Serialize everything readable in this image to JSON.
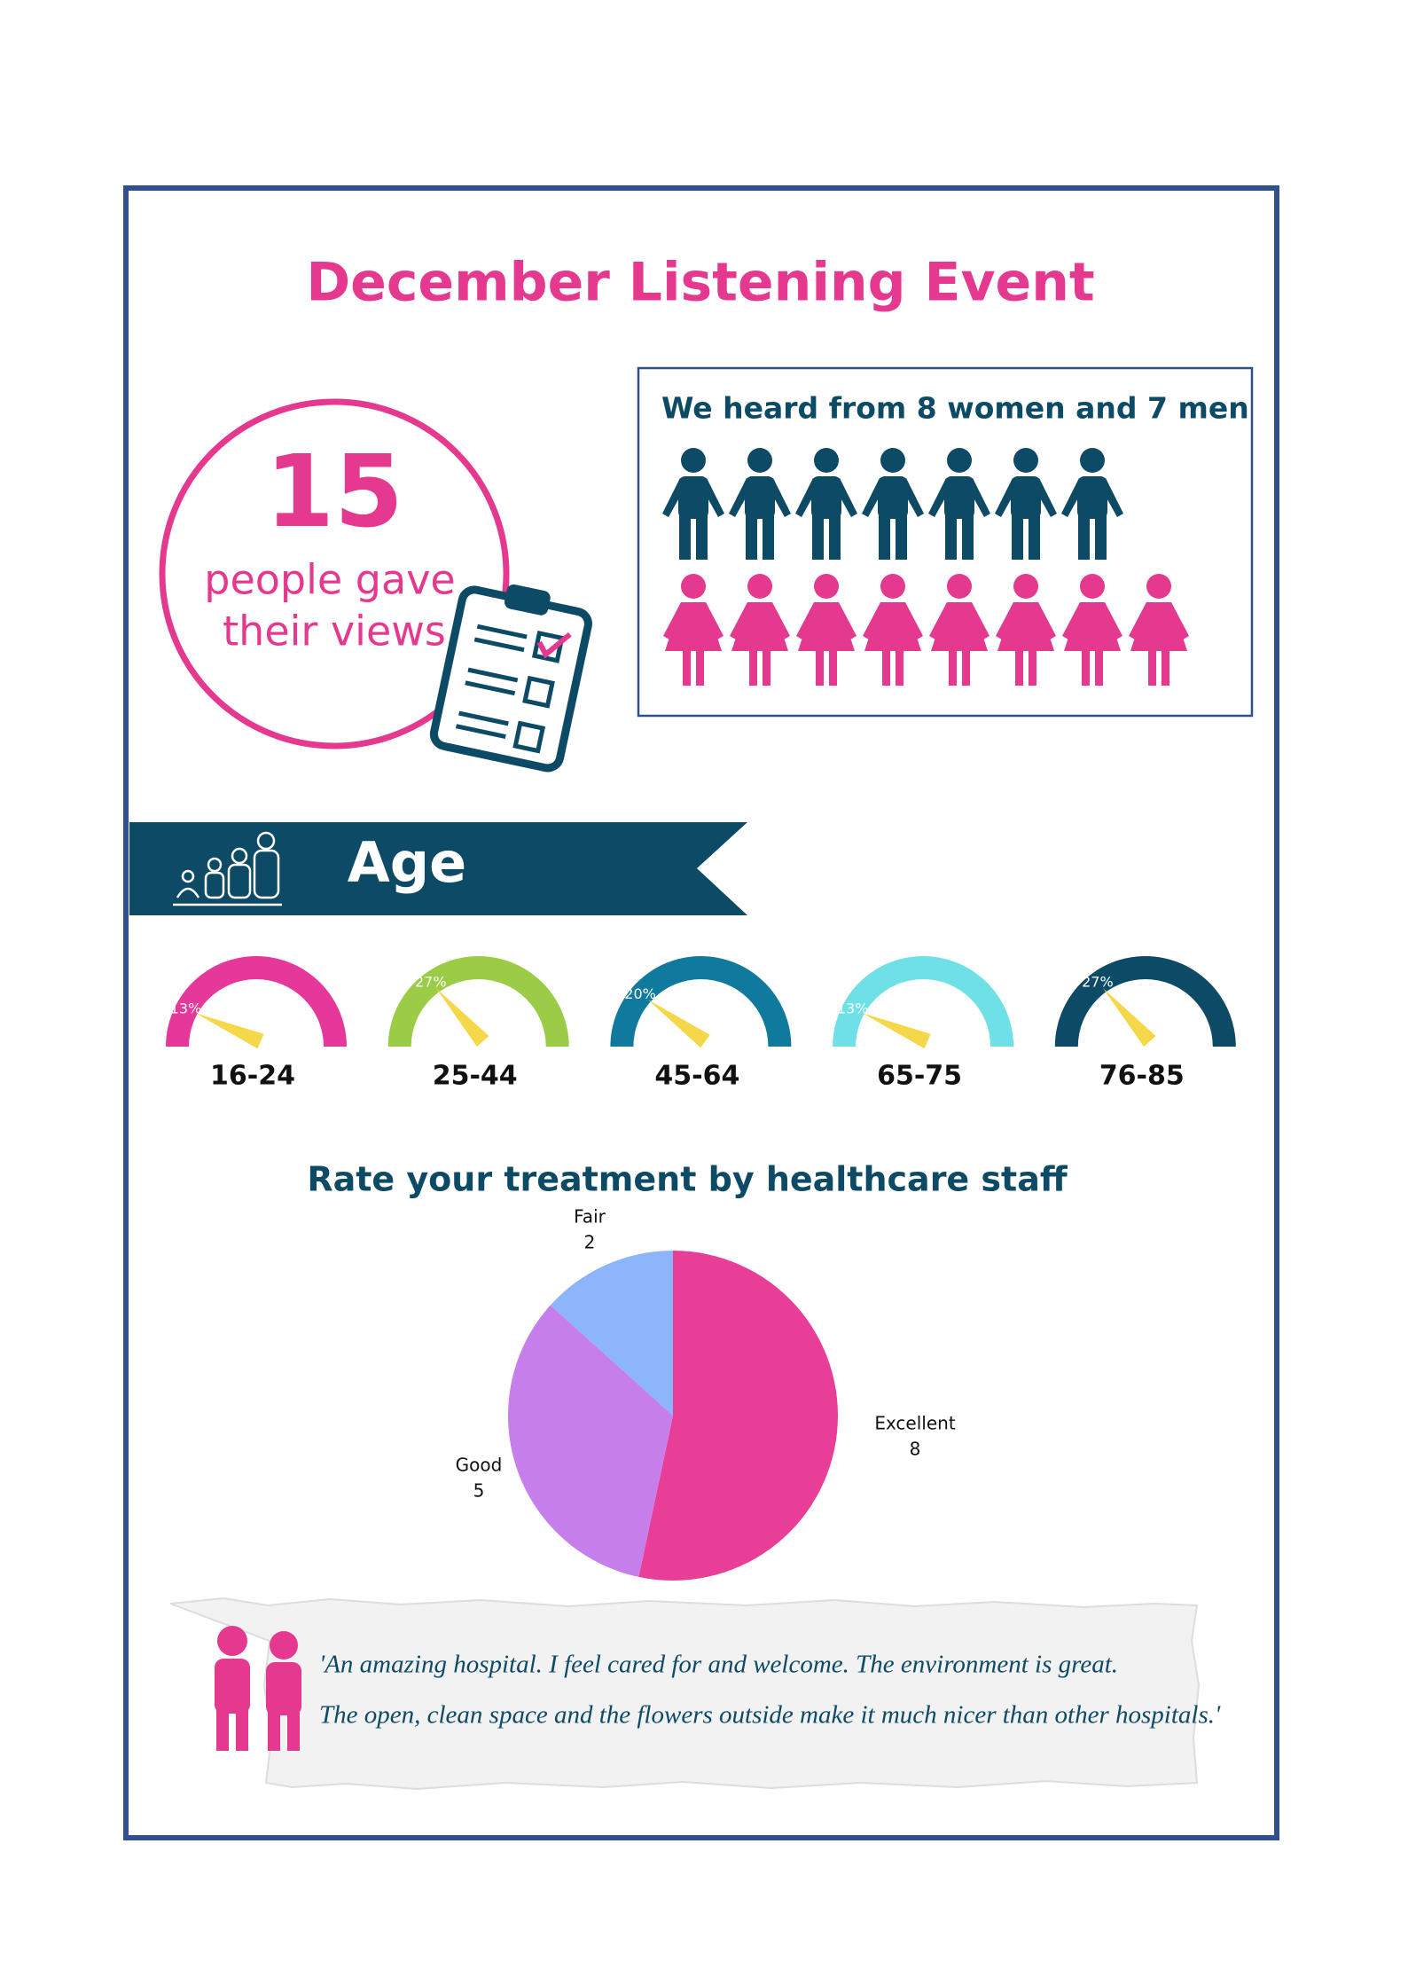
{
  "title": "December Listening Event",
  "headcount": {
    "number": 15,
    "caption": [
      "people gave",
      "their views"
    ]
  },
  "gender": {
    "heading": "We heard from 8 women and 7 men",
    "women": 8,
    "men": 7,
    "women_color": "#e5388f",
    "men_color": "#0d4a66"
  },
  "age": {
    "heading": "Age",
    "groups": [
      {
        "label": "16-24",
        "value": 13,
        "value_label": "13%",
        "color": "#e5389a"
      },
      {
        "label": "25-44",
        "value": 27,
        "value_label": "27%",
        "color": "#9bcc45"
      },
      {
        "label": "45-64",
        "value": 20,
        "value_label": "20%",
        "color": "#107a9e"
      },
      {
        "label": "65-75",
        "value": 13,
        "value_label": "13%",
        "color": "#6fe0e6"
      },
      {
        "label": "76-85",
        "value": 27,
        "value_label": "27%",
        "color": "#0d4a66"
      }
    ]
  },
  "rating": {
    "title": "Rate your treatment by healthcare staff",
    "slices": [
      {
        "name": "Excellent",
        "value": 8,
        "color": "#e83e98"
      },
      {
        "name": "Good",
        "value": 5,
        "color": "#c67fea"
      },
      {
        "name": "Fair",
        "value": 2,
        "color": "#8db5fb"
      }
    ]
  },
  "quote": [
    "'An amazing hospital. I feel cared for and welcome. The environment is great.",
    "The open, clean space and the flowers outside make it much nicer than other hospitals.'"
  ]
}
